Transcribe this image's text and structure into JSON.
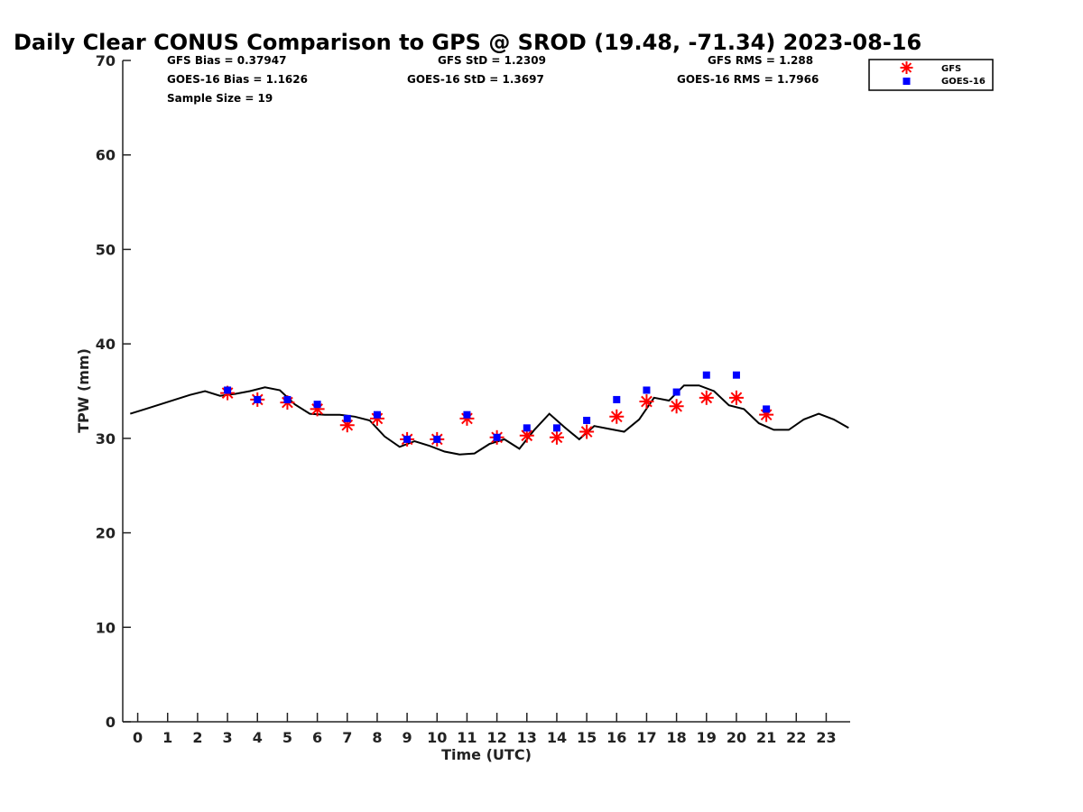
{
  "chart_data": {
    "type": "scatter",
    "title": "Daily Clear CONUS Comparison to GPS @ SROD (19.48, -71.34) 2023-08-16",
    "xlabel": "Time (UTC)",
    "ylabel": "TPW (mm)",
    "xlim": [
      -0.5,
      23.8
    ],
    "ylim": [
      0,
      70
    ],
    "x_ticks": [
      0,
      1,
      2,
      3,
      4,
      5,
      6,
      7,
      8,
      9,
      10,
      11,
      12,
      13,
      14,
      15,
      16,
      17,
      18,
      19,
      20,
      21,
      22,
      23
    ],
    "y_ticks": [
      0,
      10,
      20,
      30,
      40,
      50,
      60,
      70
    ],
    "grid": false,
    "legend_position": "top-right",
    "stats": {
      "gfs_bias": "GFS Bias = 0.37947",
      "goes_bias": "GOES-16 Bias = 1.1626",
      "sample_size": "Sample Size = 19",
      "gfs_std": "GFS StD = 1.2309",
      "goes_std": "GOES-16 StD = 1.3697",
      "gfs_rms": "GFS RMS = 1.288",
      "goes_rms": "GOES-16 RMS = 1.7966"
    },
    "series": [
      {
        "name": "GFS",
        "marker": "asterisk",
        "color": "#ff0000",
        "x": [
          3,
          4,
          5,
          6,
          7,
          8,
          9,
          10,
          11,
          12,
          13,
          14,
          15,
          16,
          17,
          18,
          19,
          20,
          21
        ],
        "y": [
          34.8,
          34.1,
          33.8,
          33.1,
          31.4,
          32.1,
          29.9,
          29.9,
          32.1,
          30.1,
          30.3,
          30.1,
          30.7,
          32.3,
          33.9,
          33.4,
          34.3,
          34.3,
          32.5
        ]
      },
      {
        "name": "GOES-16",
        "marker": "square",
        "color": "#0000ff",
        "x": [
          3,
          4,
          5,
          6,
          7,
          8,
          9,
          10,
          11,
          12,
          13,
          14,
          15,
          16,
          17,
          18,
          19,
          20,
          21
        ],
        "y": [
          35.1,
          34.1,
          34.1,
          33.6,
          32.1,
          32.5,
          29.9,
          29.9,
          32.5,
          30.1,
          31.1,
          31.1,
          31.9,
          34.1,
          35.1,
          34.9,
          36.7,
          36.7,
          33.1
        ]
      },
      {
        "name": "",
        "type": "line",
        "color": "#000000",
        "x": [
          -0.25,
          0.25,
          0.75,
          1.25,
          1.75,
          2.25,
          2.75,
          3.25,
          3.75,
          4.25,
          4.75,
          5.25,
          5.75,
          6.25,
          6.75,
          7.25,
          7.75,
          8.25,
          8.75,
          9.25,
          9.75,
          10.25,
          10.75,
          11.25,
          11.75,
          12.25,
          12.75,
          13.25,
          13.75,
          14.25,
          14.75,
          15.25,
          15.75,
          16.25,
          16.75,
          17.25,
          17.75,
          18.25,
          18.75,
          19.25,
          19.75,
          20.25,
          20.75,
          21.25,
          21.75,
          22.25,
          22.75,
          23.25,
          23.75
        ],
        "y": [
          32.6,
          33.1,
          33.6,
          34.1,
          34.6,
          35.0,
          34.5,
          34.7,
          35.0,
          35.4,
          35.1,
          33.6,
          32.6,
          32.5,
          32.5,
          32.3,
          31.9,
          30.2,
          29.1,
          29.7,
          29.2,
          28.6,
          28.3,
          28.4,
          29.4,
          29.9,
          28.9,
          30.9,
          32.6,
          31.2,
          29.9,
          31.3,
          31.0,
          30.7,
          32.0,
          34.3,
          34.0,
          35.6,
          35.6,
          35.0,
          33.5,
          33.1,
          31.6,
          30.9,
          30.9,
          32.0,
          32.6,
          32.0,
          31.1
        ]
      }
    ]
  }
}
